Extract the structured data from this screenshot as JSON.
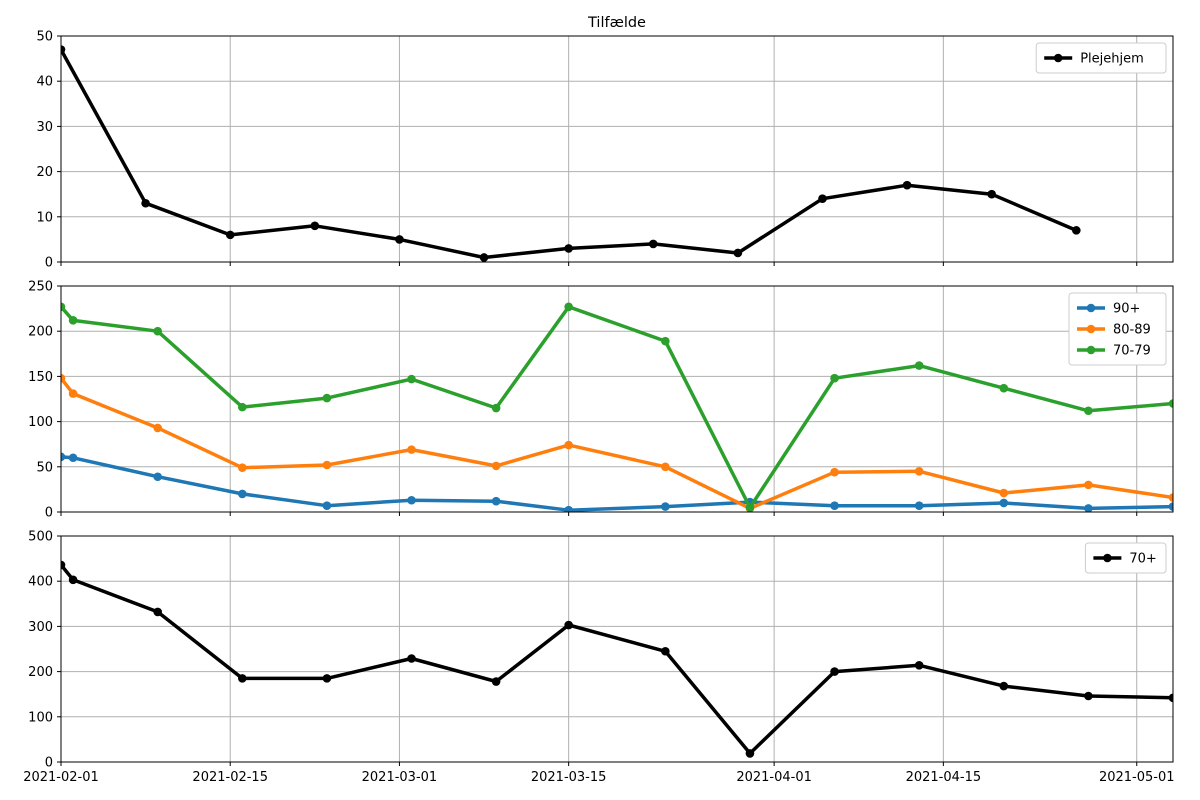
{
  "title": "Tilfælde",
  "chart_data": [
    {
      "type": "line",
      "title": "Tilfælde",
      "xlabel": "",
      "ylabel": "",
      "ylim": [
        0,
        50
      ],
      "yticks": [
        0,
        10,
        20,
        30,
        40,
        50
      ],
      "grid": true,
      "legend": "upper-right",
      "series": [
        {
          "name": "Plejehjem",
          "color": "#000000",
          "x": [
            "2021-02-01",
            "2021-02-08",
            "2021-02-15",
            "2021-02-22",
            "2021-03-01",
            "2021-03-08",
            "2021-03-15",
            "2021-03-22",
            "2021-03-29",
            "2021-04-05",
            "2021-04-12",
            "2021-04-19",
            "2021-04-26"
          ],
          "values": [
            47,
            13,
            6,
            8,
            5,
            1,
            3,
            4,
            2,
            14,
            17,
            15,
            7
          ]
        }
      ]
    },
    {
      "type": "line",
      "xlabel": "",
      "ylabel": "",
      "ylim": [
        0,
        250
      ],
      "yticks": [
        0,
        50,
        100,
        150,
        200,
        250
      ],
      "grid": true,
      "legend": "upper-right",
      "series": [
        {
          "name": "90+",
          "color": "#1f77b4",
          "x": [
            "2021-02-01",
            "2021-02-02",
            "2021-02-09",
            "2021-02-16",
            "2021-02-23",
            "2021-03-02",
            "2021-03-09",
            "2021-03-15",
            "2021-03-23",
            "2021-03-30",
            "2021-04-06",
            "2021-04-13",
            "2021-04-20",
            "2021-04-27",
            "2021-05-04"
          ],
          "values": [
            61,
            60,
            39,
            20,
            7,
            13,
            12,
            2,
            6,
            11,
            7,
            7,
            10,
            4,
            6
          ]
        },
        {
          "name": "80-89",
          "color": "#ff7f0e",
          "x": [
            "2021-02-01",
            "2021-02-02",
            "2021-02-09",
            "2021-02-16",
            "2021-02-23",
            "2021-03-02",
            "2021-03-09",
            "2021-03-15",
            "2021-03-23",
            "2021-03-30",
            "2021-04-06",
            "2021-04-13",
            "2021-04-20",
            "2021-04-27",
            "2021-05-04"
          ],
          "values": [
            148,
            131,
            93,
            49,
            52,
            69,
            51,
            74,
            50,
            4,
            44,
            45,
            21,
            30,
            16
          ]
        },
        {
          "name": "70-79",
          "color": "#2ca02c",
          "x": [
            "2021-02-01",
            "2021-02-02",
            "2021-02-09",
            "2021-02-16",
            "2021-02-23",
            "2021-03-02",
            "2021-03-09",
            "2021-03-15",
            "2021-03-23",
            "2021-03-30",
            "2021-04-06",
            "2021-04-13",
            "2021-04-20",
            "2021-04-27",
            "2021-05-04"
          ],
          "values": [
            227,
            212,
            200,
            116,
            126,
            147,
            115,
            227,
            189,
            5,
            148,
            162,
            137,
            112,
            120
          ]
        }
      ]
    },
    {
      "type": "line",
      "xlabel": "",
      "ylabel": "",
      "ylim": [
        0,
        500
      ],
      "yticks": [
        0,
        100,
        200,
        300,
        400,
        500
      ],
      "grid": true,
      "legend": "upper-right",
      "series": [
        {
          "name": "70+",
          "color": "#000000",
          "x": [
            "2021-02-01",
            "2021-02-02",
            "2021-02-09",
            "2021-02-16",
            "2021-02-23",
            "2021-03-02",
            "2021-03-09",
            "2021-03-15",
            "2021-03-23",
            "2021-03-30",
            "2021-04-06",
            "2021-04-13",
            "2021-04-20",
            "2021-04-27",
            "2021-05-04"
          ],
          "values": [
            436,
            403,
            332,
            185,
            185,
            229,
            178,
            303,
            245,
            19,
            200,
            214,
            168,
            146,
            142
          ]
        }
      ]
    }
  ],
  "x_axis": {
    "min": "2021-02-01",
    "max": "2021-05-04",
    "ticks": [
      "2021-02-01",
      "2021-02-15",
      "2021-03-01",
      "2021-03-15",
      "2021-04-01",
      "2021-04-15",
      "2021-05-01"
    ]
  }
}
